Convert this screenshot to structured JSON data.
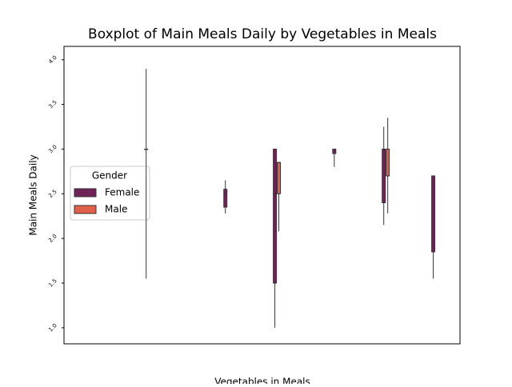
{
  "chart_data": {
    "type": "box",
    "title": "Boxplot of Main Meals Daily by Vegetables in Meals",
    "x_label": "Vegetables in Meals",
    "y_label": "Main Meals Daily",
    "categories": [
      null,
      null,
      null,
      null,
      null,
      null,
      null,
      null,
      null,
      null,
      null,
      null,
      null,
      null,
      null,
      null,
      null,
      null,
      null,
      null,
      null,
      null,
      null,
      null,
      null,
      null,
      null,
      null,
      null,
      null,
      null,
      null,
      null,
      null,
      null,
      null,
      null,
      null,
      null,
      null
    ],
    "ylim": [
      0.82,
      4.15
    ],
    "yticks": [
      {
        "value": 1,
        "label": "1.0"
      },
      {
        "value": 1.5,
        "label": "1.5"
      },
      {
        "value": 2,
        "label": "2.0"
      },
      {
        "value": 2.5,
        "label": "2.5"
      },
      {
        "value": 3,
        "label": "3.0"
      },
      {
        "value": 3.5,
        "label": "3.5"
      },
      {
        "value": 4,
        "label": "4.0"
      }
    ],
    "legend_title": "Gender",
    "legend": "center left",
    "series": [
      {
        "name": "Female",
        "color": "#6f2257",
        "values": [
          null,
          null,
          null,
          null,
          null,
          null,
          null,
          null,
          {
            "min": 1.55,
            "q1": 3.0,
            "median": 3.0,
            "q3": 3.0,
            "max": 3.9
          },
          null,
          null,
          null,
          null,
          null,
          null,
          null,
          {
            "min": 2.28,
            "q1": 2.35,
            "median": 2.5,
            "q3": 2.55,
            "max": 2.65
          },
          null,
          null,
          null,
          null,
          {
            "min": 1.0,
            "q1": 1.5,
            "median": 2.5,
            "q3": 3.0,
            "max": 3.0
          },
          null,
          null,
          null,
          null,
          null,
          {
            "min": 2.8,
            "q1": 2.95,
            "median": 3.0,
            "q3": 3.0,
            "max": 3.0
          },
          null,
          null,
          null,
          null,
          {
            "min": 2.15,
            "q1": 2.4,
            "median": 3.0,
            "q3": 3.0,
            "max": 3.25
          },
          null,
          null,
          null,
          null,
          {
            "min": 1.55,
            "q1": 1.85,
            "median": 1.85,
            "q3": 2.7,
            "max": 2.7
          },
          null,
          null
        ]
      },
      {
        "name": "Male",
        "color": "#e0604a",
        "values": [
          null,
          null,
          null,
          null,
          null,
          null,
          null,
          null,
          null,
          null,
          null,
          null,
          null,
          null,
          null,
          null,
          null,
          null,
          null,
          null,
          null,
          {
            "min": 2.08,
            "q1": 2.5,
            "median": 2.85,
            "q3": 2.85,
            "max": 2.85
          },
          null,
          null,
          null,
          null,
          null,
          null,
          null,
          null,
          null,
          null,
          {
            "min": 2.28,
            "q1": 2.7,
            "median": 2.7,
            "q3": 3.0,
            "max": 3.35
          },
          null,
          null,
          null,
          null,
          null,
          null,
          null
        ]
      }
    ]
  }
}
